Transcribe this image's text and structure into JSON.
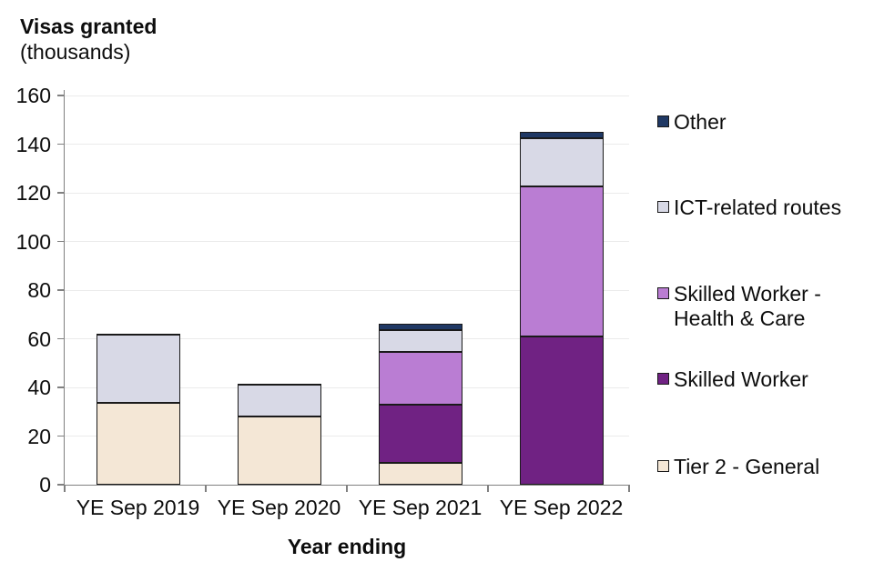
{
  "title": "Visas granted",
  "subtitle": "(thousands)",
  "chart_data": {
    "type": "bar",
    "stacked": true,
    "title": "Visas granted (thousands)",
    "xlabel": "Year ending",
    "ylabel": "Visas granted (thousands)",
    "categories": [
      "YE Sep 2019",
      "YE Sep 2020",
      "YE Sep 2021",
      "YE Sep 2022"
    ],
    "series": [
      {
        "name": "Tier 2 - General",
        "color": "#F4E7D6",
        "values": [
          33.5,
          28.0,
          9.0,
          0.0
        ]
      },
      {
        "name": "Skilled Worker",
        "color": "#702283",
        "values": [
          0.0,
          0.0,
          24.0,
          61.0
        ]
      },
      {
        "name": "Skilled Worker - Health & Care",
        "color": "#BA7DD3",
        "values": [
          0.0,
          0.0,
          21.5,
          61.5
        ]
      },
      {
        "name": "ICT-related routes",
        "color": "#D8D9E6",
        "values": [
          28.0,
          13.0,
          9.0,
          20.0
        ]
      },
      {
        "name": "Other",
        "color": "#1F3864",
        "values": [
          0.5,
          0.5,
          2.5,
          2.5
        ]
      }
    ],
    "totals": [
      62.0,
      41.5,
      66.0,
      145.0
    ],
    "ylim": [
      0,
      160
    ],
    "yticks": [
      0,
      20,
      40,
      60,
      80,
      100,
      120,
      140,
      160
    ],
    "grid": true,
    "legend_position": "right",
    "legend_order_top_to_bottom": [
      "Other",
      "ICT-related routes",
      "Skilled Worker - Health & Care",
      "Skilled Worker",
      "Tier 2 - General"
    ],
    "axis_color": "#808080",
    "gridline_color": "#ebebeb",
    "bar_border_color": "#1a1a1a"
  }
}
